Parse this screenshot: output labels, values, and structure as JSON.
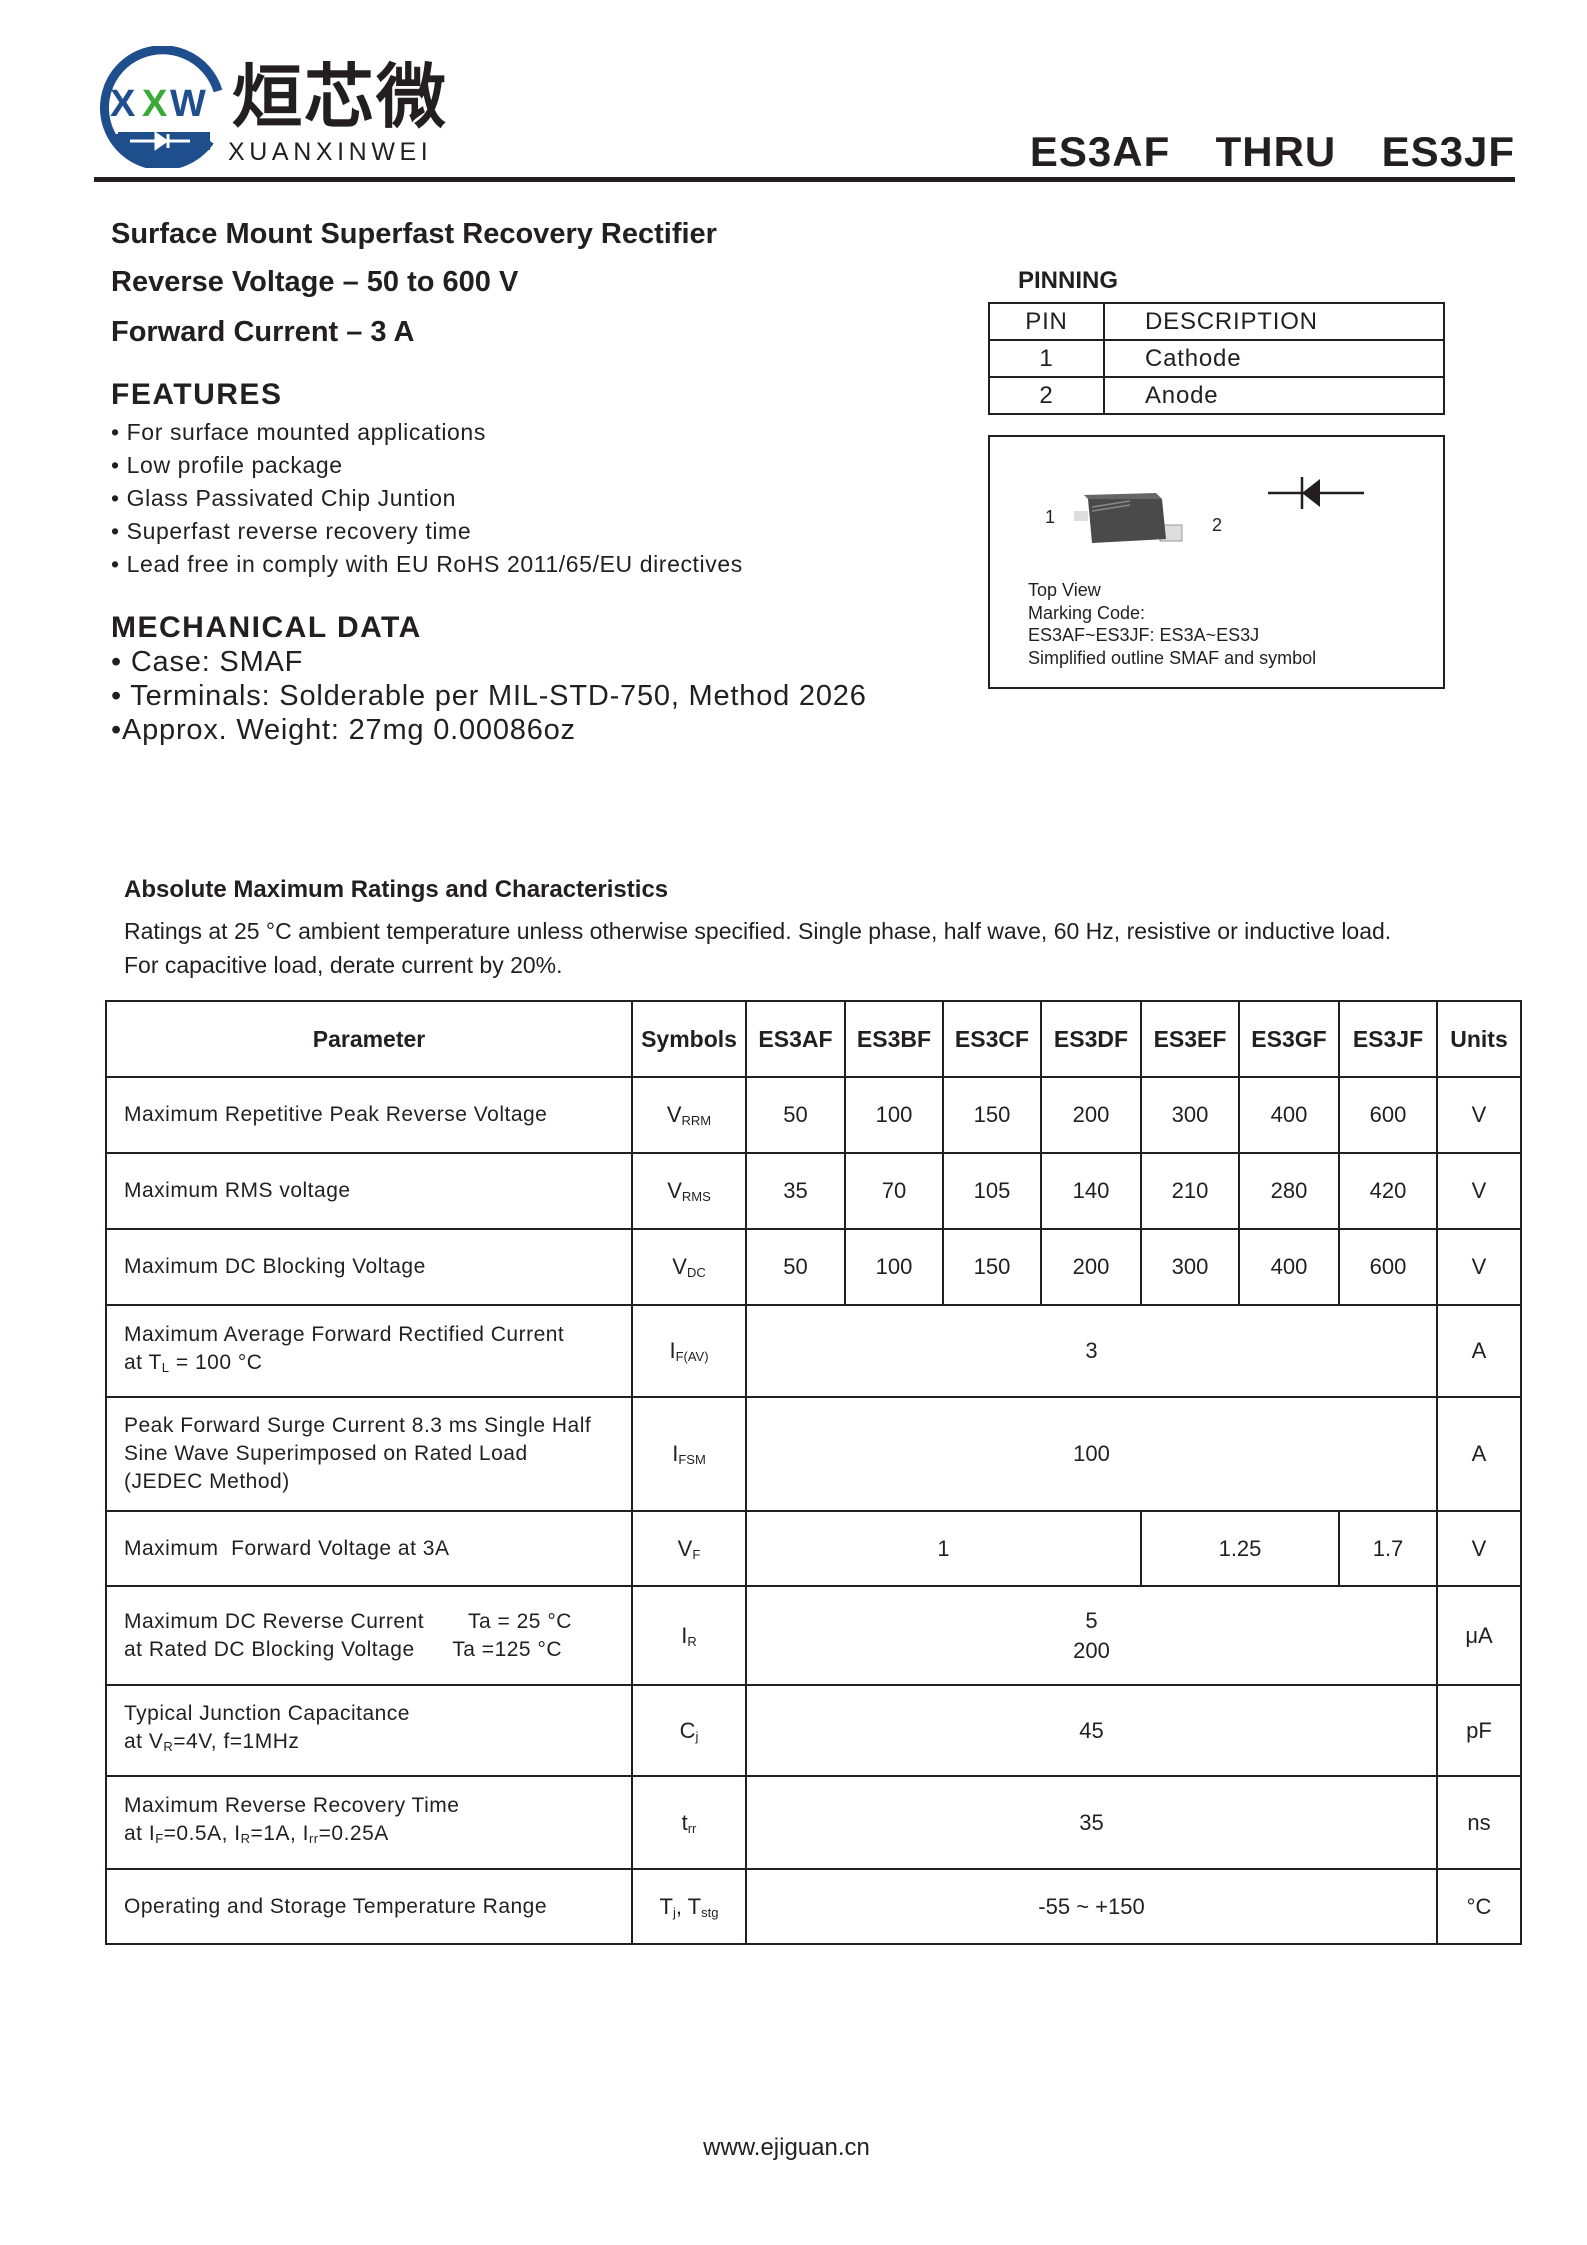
{
  "header": {
    "logo_text": "XXW",
    "company_cn": "烜芯微",
    "company_en": "XUANXINWEI",
    "title": "ES3AF  THRU  ES3JF",
    "brand_color": "#1f4e8c",
    "accent_color": "#3aa935"
  },
  "intro": {
    "line1": "Surface Mount Superfast Recovery Rectifier",
    "line2": "Reverse Voltage – 50 to 600 V",
    "line3": "Forward Current – 3 A"
  },
  "features": {
    "heading": "FEATURES",
    "items": [
      "For surface mounted applications",
      "Low profile package",
      "Glass Passivated Chip Juntion",
      "Superfast reverse recovery time",
      "Lead free in comply with EU RoHS 2011/65/EU directives"
    ]
  },
  "mechanical": {
    "heading": "MECHANICAL DATA",
    "items": [
      "Case: SMAF",
      "Terminals: Solderable per MIL-STD-750, Method 2026",
      "Approx. Weight: 27mg  0.00086oz"
    ]
  },
  "pinning": {
    "heading": "PINNING",
    "col_pin": "PIN",
    "col_desc": "DESCRIPTION",
    "rows": [
      {
        "pin": "1",
        "desc": "Cathode"
      },
      {
        "pin": "2",
        "desc": "Anode"
      }
    ],
    "pkg_label_1": "1",
    "pkg_label_2": "2",
    "caption": [
      "Top View",
      "Marking Code:",
      "ES3AF~ES3JF: ES3A~ES3J",
      "Simplified outline SMAF and symbol"
    ]
  },
  "ratings": {
    "heading": "Absolute Maximum Ratings and Characteristics",
    "note1": "Ratings at 25 °C ambient temperature unless otherwise specified. Single phase, half wave, 60 Hz, resistive or inductive load.",
    "note2": "For capacitive load, derate current by 20%.",
    "columns": [
      "Parameter",
      "Symbols",
      "ES3AF",
      "ES3BF",
      "ES3CF",
      "ES3DF",
      "ES3EF",
      "ES3GF",
      "ES3JF",
      "Units"
    ],
    "rows": [
      {
        "param": [
          [
            [
              "Maximum Repetitive Peak Reverse Voltage"
            ]
          ]
        ],
        "sym": [
          "V",
          "RRM"
        ],
        "values": [
          [
            "50",
            1
          ],
          [
            "100",
            1
          ],
          [
            "150",
            1
          ],
          [
            "200",
            1
          ],
          [
            "300",
            1
          ],
          [
            "400",
            1
          ],
          [
            "600",
            1
          ]
        ],
        "unit": "V"
      },
      {
        "param": [
          [
            [
              "Maximum RMS voltage"
            ]
          ]
        ],
        "sym": [
          "V",
          "RMS"
        ],
        "values": [
          [
            "35",
            1
          ],
          [
            "70",
            1
          ],
          [
            "105",
            1
          ],
          [
            "140",
            1
          ],
          [
            "210",
            1
          ],
          [
            "280",
            1
          ],
          [
            "420",
            1
          ]
        ],
        "unit": "V"
      },
      {
        "param": [
          [
            [
              "Maximum DC Blocking Voltage"
            ]
          ]
        ],
        "sym": [
          "V",
          "DC"
        ],
        "values": [
          [
            "50",
            1
          ],
          [
            "100",
            1
          ],
          [
            "150",
            1
          ],
          [
            "200",
            1
          ],
          [
            "300",
            1
          ],
          [
            "400",
            1
          ],
          [
            "600",
            1
          ]
        ],
        "unit": "V"
      },
      {
        "param": [
          [
            [
              "Maximum Average Forward Rectified Current"
            ]
          ],
          [
            [
              "at T"
            ],
            [
              "L",
              "sub"
            ],
            [
              " = 100 °C"
            ]
          ]
        ],
        "sym": [
          "I",
          "F(AV)"
        ],
        "values": [
          [
            "3",
            7
          ]
        ],
        "unit": "A"
      },
      {
        "param": [
          [
            [
              "Peak Forward Surge Current 8.3 ms Single Half"
            ]
          ],
          [
            [
              "Sine Wave Superimposed on Rated Load"
            ]
          ],
          [
            [
              "(JEDEC Method)"
            ]
          ]
        ],
        "sym": [
          "I",
          "FSM"
        ],
        "values": [
          [
            "100",
            7
          ]
        ],
        "unit": "A"
      },
      {
        "param": [
          [
            [
              "Maximum  Forward Voltage at 3A"
            ]
          ]
        ],
        "sym": [
          "V",
          "F"
        ],
        "values": [
          [
            "1",
            4
          ],
          [
            "1.25",
            2
          ],
          [
            "1.7",
            1
          ]
        ],
        "unit": "V"
      },
      {
        "param": [
          [
            [
              "Maximum DC Reverse Current       Ta = 25 °C"
            ]
          ],
          [
            [
              "at Rated DC Blocking Voltage      Ta =125 °C"
            ]
          ]
        ],
        "sym": [
          "I",
          "R"
        ],
        "values": [
          [
            "5\n200",
            7
          ]
        ],
        "unit": "μA"
      },
      {
        "param": [
          [
            [
              "Typical Junction Capacitance"
            ]
          ],
          [
            [
              "at V"
            ],
            [
              "R",
              "sub"
            ],
            [
              "=4V, f=1MHz"
            ]
          ]
        ],
        "sym": [
          "C",
          "j"
        ],
        "values": [
          [
            "45",
            7
          ]
        ],
        "unit": "pF"
      },
      {
        "param": [
          [
            [
              "Maximum Reverse Recovery Time"
            ]
          ],
          [
            [
              "at I"
            ],
            [
              "F",
              "sub"
            ],
            [
              "=0.5A, I"
            ],
            [
              "R",
              "sub"
            ],
            [
              "=1A, I"
            ],
            [
              "rr",
              "sub"
            ],
            [
              "=0.25A"
            ]
          ]
        ],
        "sym": [
          "t",
          "rr"
        ],
        "values": [
          [
            "35",
            7
          ]
        ],
        "unit": "ns"
      },
      {
        "param": [
          [
            [
              "Operating and Storage Temperature Range"
            ]
          ]
        ],
        "sym": [
          "T",
          "j",
          ", T",
          "stg"
        ],
        "values": [
          [
            "-55 ~ +150",
            7
          ]
        ],
        "unit": "°C"
      }
    ]
  },
  "footer": {
    "website": "www.ejiguan.cn"
  }
}
